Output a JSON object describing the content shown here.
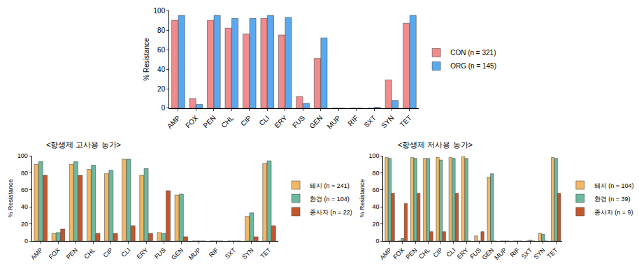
{
  "chart_data": [
    {
      "type": "bar",
      "y_label": "% Resistance",
      "categories": [
        "AMP",
        "FOX",
        "PEN",
        "CHL",
        "CIP",
        "CLI",
        "ERY",
        "FUS",
        "GEN",
        "MUP",
        "RIF",
        "SXT",
        "SYN",
        "TET"
      ],
      "series": [
        {
          "name": "CON (n = 321)",
          "color": "#f28c8c",
          "values": [
            90,
            10,
            90,
            82,
            76,
            92,
            75,
            12,
            51,
            0,
            0,
            0,
            29,
            87
          ]
        },
        {
          "name": "ORG (n = 145)",
          "color": "#5aa9f0",
          "values": [
            95,
            4,
            95,
            92,
            92,
            95,
            93,
            5,
            72,
            0,
            0,
            1,
            8,
            95
          ]
        }
      ],
      "ylim": [
        0,
        100
      ],
      "yticks": [
        0,
        20,
        40,
        60,
        80,
        100
      ],
      "grid": false,
      "legend": "right"
    },
    {
      "type": "bar",
      "title": "<항생제 고사용 농가>",
      "y_label": "% Resistance",
      "categories": [
        "AMP",
        "FOX",
        "PEN",
        "CHL",
        "CIP",
        "CLI",
        "ERY",
        "FUS",
        "GEN",
        "MUP",
        "RIF",
        "SXT",
        "SYN",
        "TET"
      ],
      "series": [
        {
          "name": "돼지 (n = 241)",
          "color": "#f2b866",
          "values": [
            90,
            9,
            90,
            84,
            79,
            96,
            77,
            10,
            54,
            0,
            0,
            0,
            29,
            91
          ]
        },
        {
          "name": "환경 (n = 104)",
          "color": "#6cb9a0",
          "values": [
            93,
            10,
            93,
            89,
            83,
            96,
            85,
            9,
            55,
            0,
            0,
            0,
            33,
            94
          ]
        },
        {
          "name": "종사자 (n = 22)",
          "color": "#c4562e",
          "values": [
            77,
            14,
            77,
            9,
            9,
            18,
            9,
            59,
            5,
            0,
            0,
            0,
            5,
            18
          ]
        }
      ],
      "ylim": [
        0,
        100
      ],
      "yticks": [
        0,
        20,
        40,
        60,
        80,
        100
      ],
      "grid": false,
      "legend": "right"
    },
    {
      "type": "bar",
      "title": "<항생제 저사용 농가>",
      "y_label": "% Resistance",
      "categories": [
        "AMP",
        "FOX",
        "PEN",
        "CHL",
        "CIP",
        "CLI",
        "ERY",
        "FUS",
        "GEN",
        "MUP",
        "RIF",
        "SXT",
        "SYN",
        "TET"
      ],
      "series": [
        {
          "name": "돼지 (n = 104)",
          "color": "#f2b866",
          "values": [
            98,
            0,
            98,
            97,
            98,
            98,
            99,
            6,
            75,
            0,
            0,
            0,
            9,
            98
          ]
        },
        {
          "name": "환경 (n = 39)",
          "color": "#6cb9a0",
          "values": [
            97,
            3,
            97,
            97,
            95,
            97,
            97,
            0,
            79,
            0,
            0,
            1,
            8,
            97
          ]
        },
        {
          "name": "종사자 (n = 9)",
          "color": "#c4562e",
          "values": [
            56,
            44,
            56,
            11,
            11,
            56,
            0,
            11,
            0,
            0,
            0,
            0,
            0,
            56
          ]
        }
      ],
      "ylim": [
        0,
        100
      ],
      "yticks": [
        0,
        20,
        40,
        60,
        80,
        100
      ],
      "grid": false,
      "legend": "right"
    }
  ]
}
